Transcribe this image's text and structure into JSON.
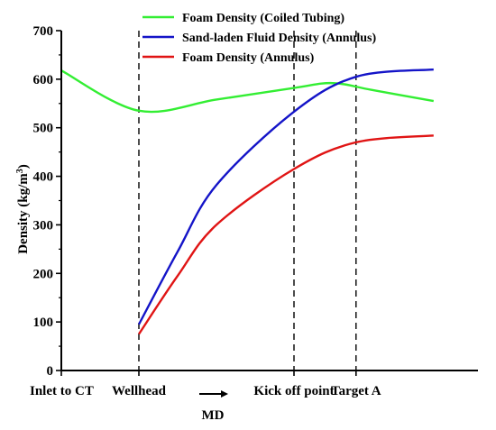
{
  "chart_data": {
    "type": "line",
    "xlabel": "MD",
    "ylabel_main": "Density (kg/m",
    "ylabel_sup": "3",
    "ylabel_close": ")",
    "ylim": [
      0,
      700
    ],
    "yticks": [
      0,
      100,
      200,
      300,
      400,
      500,
      600,
      700
    ],
    "x_markers": [
      {
        "label": "Inlet to CT",
        "x": 0
      },
      {
        "label": "Wellhead",
        "x": 1
      },
      {
        "label": "Kick off point",
        "x": 3
      },
      {
        "label": "Target A",
        "x": 3.8
      }
    ],
    "dashed_lines_at": [
      1,
      3,
      3.8
    ],
    "x_domain": [
      0,
      4.8
    ],
    "series": [
      {
        "name": "Foam Density (Coiled Tubing)",
        "color": "#33ee33",
        "points": [
          [
            0,
            618
          ],
          [
            1,
            535
          ],
          [
            2,
            558
          ],
          [
            3,
            582
          ],
          [
            3.5,
            592
          ],
          [
            4,
            578
          ],
          [
            4.8,
            555
          ]
        ]
      },
      {
        "name": "Sand-laden Fluid Density (Annulus)",
        "color": "#1414c8",
        "points": [
          [
            1,
            95
          ],
          [
            1.5,
            245
          ],
          [
            2,
            382
          ],
          [
            3,
            533
          ],
          [
            3.8,
            605
          ],
          [
            4.8,
            620
          ]
        ]
      },
      {
        "name": "Foam Density (Annulus)",
        "color": "#e01414",
        "points": [
          [
            1,
            75
          ],
          [
            1.5,
            195
          ],
          [
            2,
            300
          ],
          [
            3,
            415
          ],
          [
            3.8,
            470
          ],
          [
            4.8,
            484
          ]
        ]
      }
    ],
    "legend_position": "top-right",
    "arrow_icon": "right-arrow"
  }
}
